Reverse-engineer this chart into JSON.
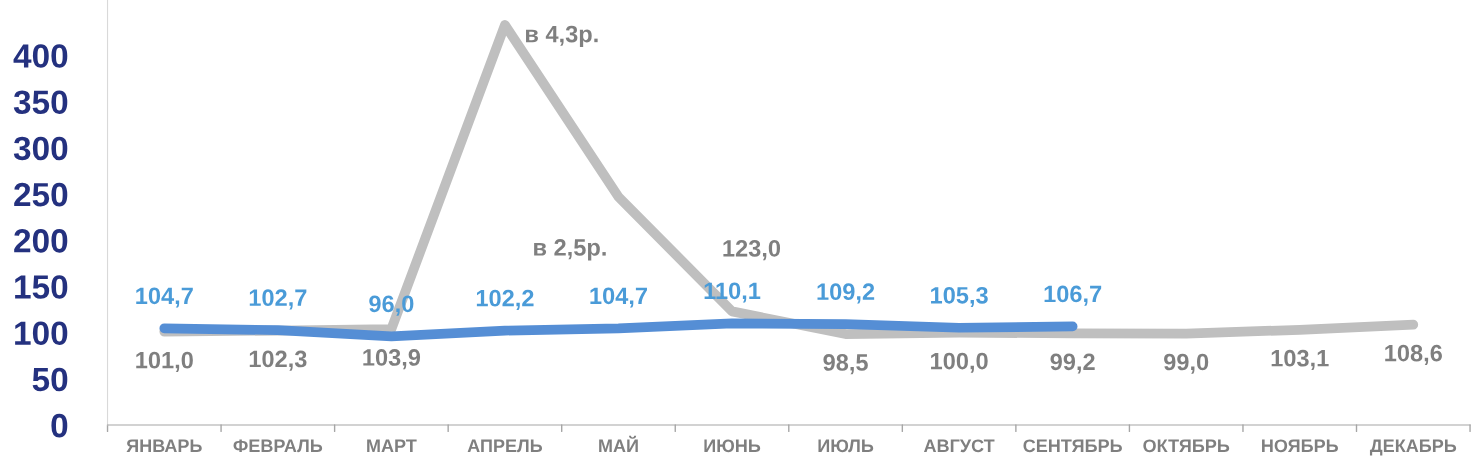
{
  "chart_data": {
    "type": "line",
    "categories": [
      "ЯНВАРЬ",
      "ФЕВРАЛЬ",
      "МАРТ",
      "АПРЕЛЬ",
      "МАЙ",
      "ИЮНЬ",
      "ИЮЛЬ",
      "АВГУСТ",
      "СЕНТЯБРЬ",
      "ОКТЯБРЬ",
      "НОЯБРЬ",
      "ДЕКАБРЬ"
    ],
    "series": [
      {
        "color": "#bfbfbf",
        "values": [
          101.0,
          102.3,
          103.9,
          433,
          247,
          123.0,
          98.5,
          100.0,
          99.2,
          99.0,
          103.1,
          108.6
        ],
        "value_labels": [
          "101,0",
          "102,3",
          "103,9",
          "в 4,3р.",
          "в 2,5р.",
          "123,0",
          "98,5",
          "100,0",
          "99,2",
          "99,0",
          "103,1",
          "108,6"
        ]
      },
      {
        "color": "#558ed5",
        "values": [
          104.7,
          102.7,
          96.0,
          102.2,
          104.7,
          110.1,
          109.2,
          105.3,
          106.7,
          null,
          null,
          null
        ],
        "value_labels": [
          "104,7",
          "102,7",
          "96,0",
          "102,2",
          "104,7",
          "110,1",
          "109,2",
          "105,3",
          "106,7",
          null,
          null,
          null
        ]
      }
    ],
    "ylim": [
      0,
      460
    ],
    "yticks": [
      0,
      50,
      100,
      150,
      200,
      250,
      300,
      350,
      400
    ],
    "grid": false,
    "legend": false,
    "marker": "none",
    "line_style": "solid"
  }
}
